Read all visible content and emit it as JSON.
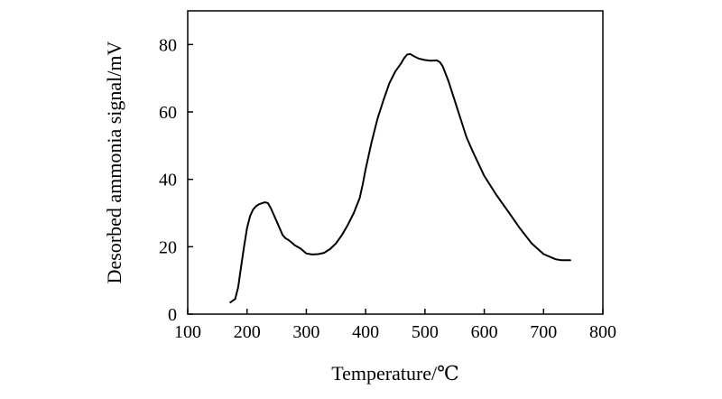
{
  "chart_data": {
    "type": "line",
    "title": "",
    "xlabel": "Temperature/℃",
    "ylabel": "Desorbed ammonia signal/mV",
    "xlim": [
      100,
      800
    ],
    "ylim": [
      0,
      90
    ],
    "xticks": [
      100,
      200,
      300,
      400,
      500,
      600,
      700,
      800
    ],
    "yticks": [
      0,
      20,
      40,
      60,
      80
    ],
    "grid": false,
    "legend": "none",
    "line_color": "#000000",
    "series": [
      {
        "x": [
          172,
          180,
          185,
          190,
          195,
          200,
          205,
          210,
          215,
          220,
          225,
          230,
          235,
          240,
          245,
          250,
          255,
          260,
          265,
          270,
          275,
          280,
          290,
          300,
          310,
          320,
          330,
          340,
          350,
          360,
          370,
          380,
          390,
          395,
          400,
          410,
          420,
          430,
          440,
          450,
          460,
          465,
          470,
          475,
          480,
          485,
          490,
          500,
          510,
          520,
          525,
          530,
          540,
          550,
          560,
          570,
          580,
          600,
          620,
          640,
          660,
          680,
          700,
          720,
          730,
          740,
          745
        ],
        "y": [
          3.5,
          4.5,
          8,
          14,
          20,
          25.5,
          29,
          31,
          32,
          32.6,
          32.9,
          33.2,
          33,
          31.5,
          29.5,
          27.5,
          25.5,
          23.5,
          22.5,
          22,
          21.3,
          20.5,
          19.5,
          18,
          17.7,
          17.8,
          18.2,
          19.3,
          21,
          23.5,
          26.5,
          30,
          34.5,
          38.5,
          43,
          51,
          58,
          63.5,
          68.5,
          72,
          74.5,
          76,
          77,
          77.2,
          76.7,
          76.2,
          75.8,
          75.4,
          75.2,
          75.3,
          74.8,
          73.5,
          69,
          63.5,
          58,
          52.5,
          48.5,
          41,
          35.5,
          30.5,
          25.5,
          21,
          17.8,
          16.3,
          16,
          16,
          16
        ]
      }
    ]
  }
}
